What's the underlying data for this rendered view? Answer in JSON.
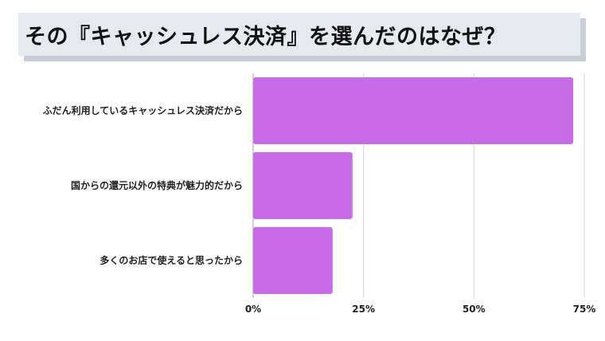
{
  "chart_data": {
    "type": "bar",
    "orientation": "horizontal",
    "title": "その『キャッシュレス決済』を選んだのはなぜ？",
    "categories": [
      "ふだん利用しているキャッシュレス決済だから",
      "国からの還元以外の特典が魅力的だから",
      "多くのお店で使えると思ったから"
    ],
    "values": [
      72.5,
      22.5,
      18
    ],
    "unit": "%",
    "xlim": [
      0,
      75
    ],
    "xticks": [
      0,
      25,
      50,
      75
    ],
    "xtick_labels": [
      "0%",
      "25%",
      "50%",
      "75%"
    ],
    "bar_color": "#c86be6",
    "grid": true
  }
}
